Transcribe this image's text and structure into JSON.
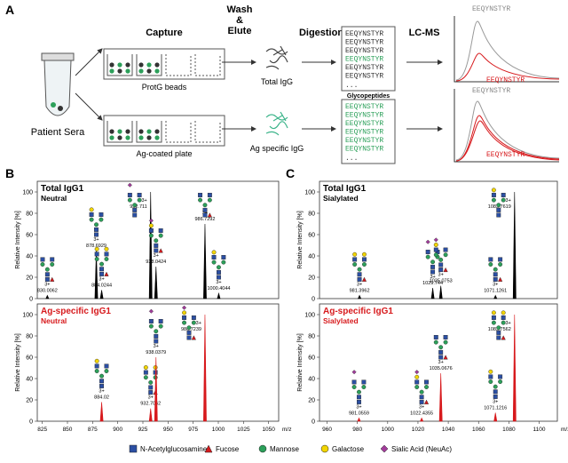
{
  "panel_labels": {
    "a": "A",
    "b": "B",
    "c": "C"
  },
  "panel_a": {
    "sample": "Patient Sera",
    "capture": "Capture",
    "wash": "Wash",
    "amp": "&",
    "elute": "Elute",
    "digestion": "Digestion",
    "lcms": "LC-MS",
    "protg": "ProtG beads",
    "agplate": "Ag-coated plate",
    "total_igg": "Total IgG",
    "ag_igg": "Ag specific IgG",
    "glycopeptides": "Glycopeptides",
    "peptide": "EEQYNSTYR",
    "ellipsis": "..."
  },
  "chart_data": [
    {
      "type": "spectrum",
      "title": "Total IgG1",
      "subtitle": "Neutral",
      "color": "#000000",
      "ylabel": "Relative Intensity [%]",
      "ylim": [
        0,
        110
      ],
      "yticks": [
        0,
        20,
        40,
        60,
        80,
        100
      ],
      "xlim": [
        820,
        1060
      ],
      "x": [
        830.0062,
        878.6929,
        884.0244,
        932.711,
        938.0424,
        986.7292,
        1000.4044
      ],
      "values": [
        3,
        45,
        8,
        100,
        30,
        70,
        5
      ],
      "charges": [
        "3+",
        "3+",
        "3+",
        "3+",
        "3+",
        "3+",
        "3+"
      ]
    },
    {
      "type": "spectrum",
      "title": "Ag-specific IgG1",
      "subtitle": "Neutral",
      "color": "#d7191c",
      "ylabel": "Relative Intensity [%]",
      "xlabel": "m/z",
      "ylim": [
        0,
        110
      ],
      "yticks": [
        0,
        20,
        40,
        60,
        80,
        100
      ],
      "xlim": [
        820,
        1060
      ],
      "xticks": [
        825,
        850,
        875,
        900,
        925,
        950,
        975,
        1000,
        1025,
        1050
      ],
      "x": [
        884.02,
        932.7062,
        938.0379,
        986.7239
      ],
      "values": [
        18,
        12,
        60,
        100
      ],
      "charges": [
        "3+",
        "3+",
        "3+",
        "3+"
      ]
    },
    {
      "type": "spectrum",
      "title": "Total IgG1",
      "subtitle": "Sialylated",
      "color": "#000000",
      "ylabel": "Relative Intensity [%]",
      "ylim": [
        0,
        110
      ],
      "yticks": [
        0,
        20,
        40,
        60,
        80,
        100
      ],
      "xlim": [
        955,
        1112
      ],
      "x": [
        981.3962,
        1029.744,
        1035.0753,
        1071.1261,
        1083.7619
      ],
      "values": [
        3,
        10,
        12,
        3,
        100
      ],
      "charges": [
        "3+",
        "3+",
        "3+",
        "3+",
        "3+"
      ]
    },
    {
      "type": "spectrum",
      "title": "Ag-specific IgG1",
      "subtitle": "Sialylated",
      "color": "#d7191c",
      "ylabel": "Relative Intensity [%]",
      "xlabel": "m/z",
      "ylim": [
        0,
        110
      ],
      "yticks": [
        0,
        20,
        40,
        60,
        80,
        100
      ],
      "xlim": [
        955,
        1112
      ],
      "xticks": [
        960,
        980,
        1000,
        1020,
        1040,
        1060,
        1080,
        1100
      ],
      "x": [
        981.0559,
        1022.4355,
        1035.0676,
        1071.1216,
        1083.7562
      ],
      "values": [
        3,
        3,
        45,
        8,
        100
      ],
      "charges": [
        "3+",
        "3+",
        "3+",
        "3+",
        "3+"
      ]
    }
  ],
  "legend": [
    "N-Acetylglucosamine",
    "Fucose",
    "Mannose",
    "Galactose",
    "Sialic Acid (NeuAc)"
  ]
}
